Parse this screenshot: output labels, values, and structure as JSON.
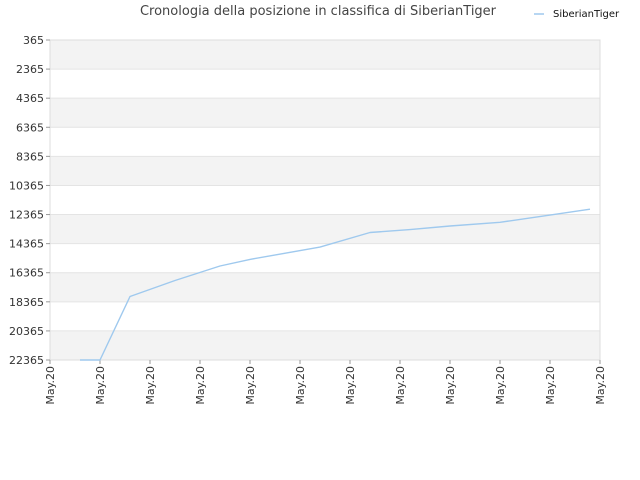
{
  "chart_data": {
    "type": "line",
    "title": "Cronologia della posizione in classifica di SiberianTiger",
    "xlabel": "",
    "ylabel": "",
    "y_inverted": true,
    "ylim": [
      365,
      22365
    ],
    "y_ticks": [
      "365",
      "2365",
      "4365",
      "6365",
      "8365",
      "10365",
      "12365",
      "14365",
      "16365",
      "18365",
      "20365",
      "22365"
    ],
    "x_ticks": [
      "May.20",
      "May.20",
      "May.20",
      "May.20",
      "May.20",
      "May.20",
      "May.20",
      "May.20",
      "May.20",
      "May.20",
      "May.20",
      "May.20"
    ],
    "grid": true,
    "legend": {
      "placement": "top-right",
      "entries": [
        "SiberianTiger"
      ]
    },
    "series": [
      {
        "name": "SiberianTiger",
        "color": "#9fc9ee",
        "points": [
          [
            0.6,
            22365
          ],
          [
            1.0,
            22365
          ],
          [
            1.6,
            18000
          ],
          [
            2.5,
            16900
          ],
          [
            3.4,
            15900
          ],
          [
            4.0,
            15450
          ],
          [
            5.4,
            14600
          ],
          [
            6.4,
            13600
          ],
          [
            7.2,
            13400
          ],
          [
            8.0,
            13150
          ],
          [
            9.0,
            12900
          ],
          [
            10.0,
            12400
          ],
          [
            10.8,
            12000
          ]
        ]
      }
    ]
  }
}
